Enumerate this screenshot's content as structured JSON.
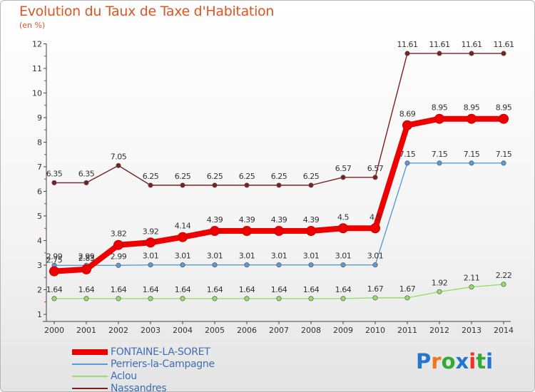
{
  "title": "Evolution du Taux de Taxe d'Habitation",
  "unit": "(en %)",
  "logo": {
    "text": "Proxiti",
    "letter_colors": [
      "#2277cc",
      "#ee7722",
      "#33aa33",
      "#2277cc",
      "#ee3322",
      "#33aa33",
      "#2277cc"
    ]
  },
  "chart_data": {
    "type": "line",
    "x": [
      "2000",
      "2001",
      "2002",
      "2003",
      "2004",
      "2005",
      "2006",
      "2007",
      "2008",
      "2009",
      "2010",
      "2011",
      "2012",
      "2013",
      "2014"
    ],
    "yticks": [
      1,
      2,
      3,
      4,
      5,
      6,
      7,
      8,
      9,
      10,
      11,
      12
    ],
    "ylim": [
      1,
      12
    ],
    "grid": false,
    "legend_position": "bottom-left",
    "series": [
      {
        "name": "Nassandres",
        "color": "#7a2020",
        "values": [
          6.35,
          6.35,
          7.05,
          6.25,
          6.25,
          6.25,
          6.25,
          6.25,
          6.25,
          6.57,
          6.57,
          11.61,
          11.61,
          11.61,
          11.61
        ],
        "labels": [
          "6.35",
          "6.35",
          "7.05",
          "6.25",
          "6.25",
          "6.25",
          "6.25",
          "6.25",
          "6.25",
          "6.57",
          "6.57",
          "11.61",
          "11.61",
          "11.61",
          "11.61"
        ]
      },
      {
        "name": "Perriers-la-Campagne",
        "color": "#5b9bd5",
        "values": [
          2.99,
          2.99,
          2.99,
          3.01,
          3.01,
          3.01,
          3.01,
          3.01,
          3.01,
          3.01,
          3.01,
          7.15,
          7.15,
          7.15,
          7.15
        ],
        "labels": [
          "2.99",
          "2.99",
          "2.99",
          "3.01",
          "3.01",
          "3.01",
          "3.01",
          "3.01",
          "3.01",
          "3.01",
          "3.01",
          "7.15",
          "7.15",
          "7.15",
          "7.15"
        ]
      },
      {
        "name": "Aclou",
        "color": "#99dd66",
        "values": [
          1.64,
          1.64,
          1.64,
          1.64,
          1.64,
          1.64,
          1.64,
          1.64,
          1.64,
          1.64,
          1.67,
          1.67,
          1.92,
          2.11,
          2.22
        ],
        "labels": [
          "1.64",
          "1.64",
          "1.64",
          "1.64",
          "1.64",
          "1.64",
          "1.64",
          "1.64",
          "1.64",
          "1.64",
          "1.67",
          "1.67",
          "1.92",
          "2.11",
          "2.22"
        ]
      },
      {
        "name": "FONTAINE-LA-SORET",
        "color": "#ee0000",
        "values": [
          2.75,
          2.83,
          3.82,
          3.92,
          4.14,
          4.39,
          4.39,
          4.39,
          4.39,
          4.5,
          4.5,
          8.69,
          8.95,
          8.95,
          8.95
        ],
        "labels": [
          "2.75",
          "2.83",
          "3.82",
          "3.92",
          "4.14",
          "4.39",
          "4.39",
          "4.39",
          "4.39",
          "4.5",
          "4.5",
          "8.69",
          "8.95",
          "8.95",
          "8.95"
        ]
      }
    ],
    "legend": [
      "FONTAINE-LA-SORET",
      "Perriers-la-Campagne",
      "Aclou",
      "Nassandres"
    ]
  }
}
